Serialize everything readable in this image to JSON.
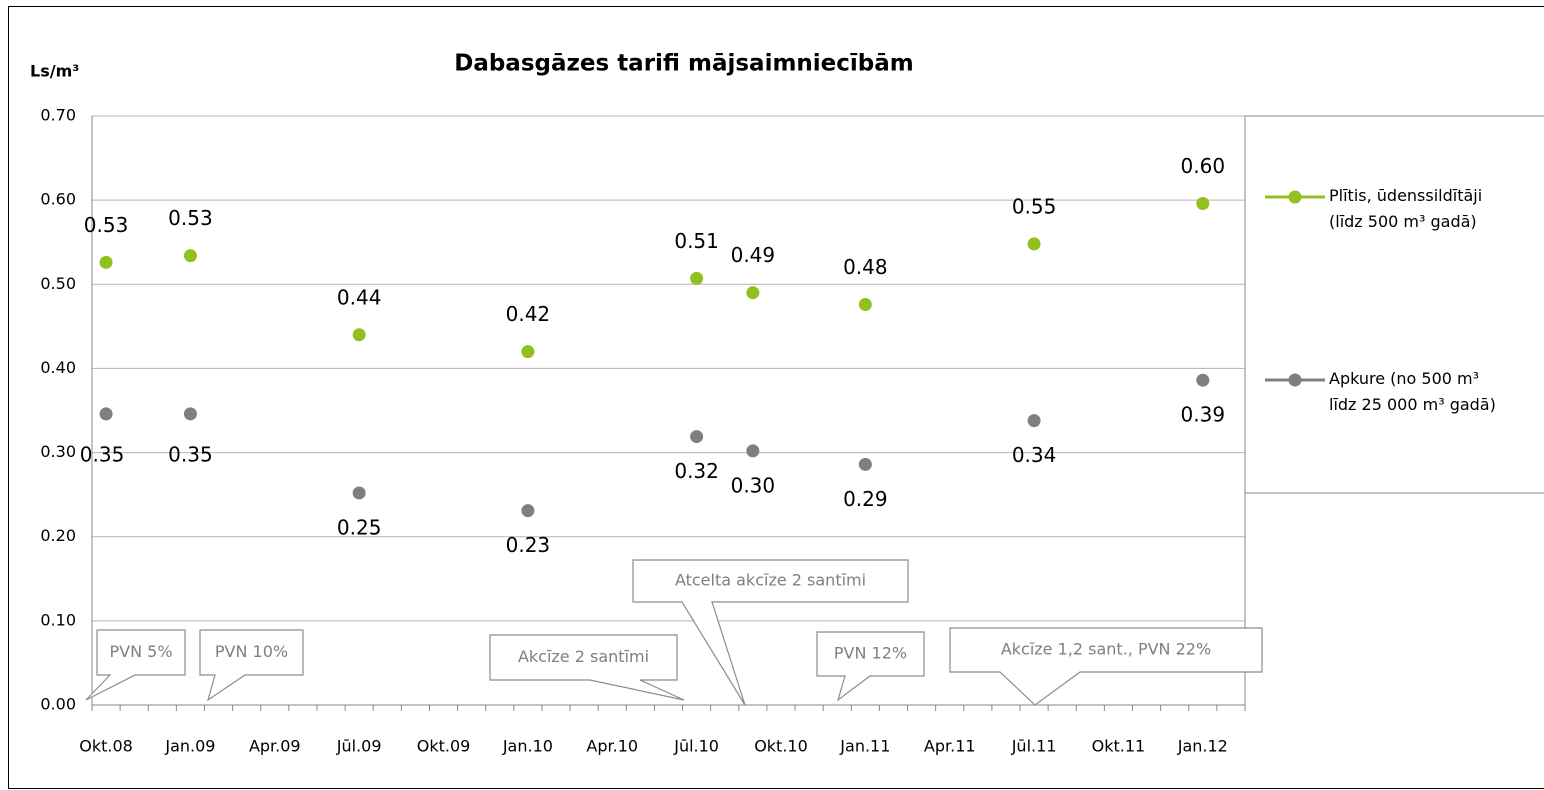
{
  "chart_data": {
    "type": "line",
    "title": "Dabasgāzes tarifi mājsaimniecībām",
    "y_label": "Ls/m³",
    "categories": [
      "Okt.08",
      null,
      null,
      "Jan.09",
      null,
      null,
      "Apr.09",
      null,
      null,
      "Jūl.09",
      null,
      null,
      "Okt.09",
      null,
      null,
      "Jan.10",
      null,
      null,
      "Apr.10",
      null,
      null,
      "Jūl.10",
      null,
      null,
      "Okt.10",
      null,
      null,
      "Jan.11",
      null,
      null,
      "Apr.11",
      null,
      null,
      "Jūl.11",
      null,
      null,
      "Okt.11",
      null,
      null,
      "Jan.12",
      null
    ],
    "series": [
      {
        "name": "Plītis, ūdenssildītāji\n(līdz 500 m³ gadā)",
        "color": "#92c01f",
        "values": [
          0.526,
          null,
          null,
          0.534,
          null,
          null,
          null,
          null,
          null,
          0.44,
          null,
          null,
          null,
          null,
          null,
          0.42,
          null,
          null,
          null,
          null,
          null,
          0.507,
          null,
          0.49,
          null,
          null,
          null,
          0.476,
          null,
          null,
          null,
          null,
          null,
          0.548,
          null,
          null,
          null,
          null,
          null,
          0.596,
          null
        ],
        "value_labels": [
          "0.53",
          null,
          null,
          "0.53",
          null,
          null,
          null,
          null,
          null,
          "0.44",
          null,
          null,
          null,
          null,
          null,
          "0.42",
          null,
          null,
          null,
          null,
          null,
          "0.51",
          null,
          "0.49",
          null,
          null,
          null,
          "0.48",
          null,
          null,
          null,
          null,
          null,
          "0.55",
          null,
          null,
          null,
          null,
          null,
          "0.60",
          null
        ]
      },
      {
        "name": "Apkure (no 500 m³\nlīdz 25 000 m³ gadā)",
        "color": "#7f7f7f",
        "values": [
          0.346,
          null,
          null,
          0.346,
          null,
          null,
          null,
          null,
          null,
          0.252,
          null,
          null,
          null,
          null,
          null,
          0.231,
          null,
          null,
          null,
          null,
          null,
          0.319,
          null,
          0.302,
          null,
          null,
          null,
          0.286,
          null,
          null,
          null,
          null,
          null,
          0.338,
          null,
          null,
          null,
          null,
          null,
          0.386,
          null
        ],
        "value_labels": [
          "0.35",
          null,
          null,
          "0.35",
          null,
          null,
          null,
          null,
          null,
          "0.25",
          null,
          null,
          null,
          null,
          null,
          "0.23",
          null,
          null,
          null,
          null,
          null,
          "0.32",
          null,
          "0.30",
          null,
          null,
          null,
          "0.29",
          null,
          null,
          null,
          null,
          null,
          "0.34",
          null,
          null,
          null,
          null,
          null,
          "0.39",
          null
        ]
      }
    ],
    "ylim": [
      0,
      0.7
    ],
    "yticks": [
      {
        "value": 0,
        "label": "0.00"
      },
      {
        "value": 0.1,
        "label": "0.10"
      },
      {
        "value": 0.2,
        "label": "0.20"
      },
      {
        "value": 0.3,
        "label": "0.30"
      },
      {
        "value": 0.4,
        "label": "0.40"
      },
      {
        "value": 0.5,
        "label": "0.50"
      },
      {
        "value": 0.6,
        "label": "0.60"
      },
      {
        "value": 0.7,
        "label": "0.70"
      }
    ],
    "grid": true,
    "legend": "right",
    "annotations": [
      "PVN 5%",
      "PVN 10%",
      "Akcīze 2 santīmi",
      "Atcelta akcīze 2 santīmi",
      "PVN 12%",
      "Akcīze 1,2 sant., PVN 22%"
    ]
  }
}
